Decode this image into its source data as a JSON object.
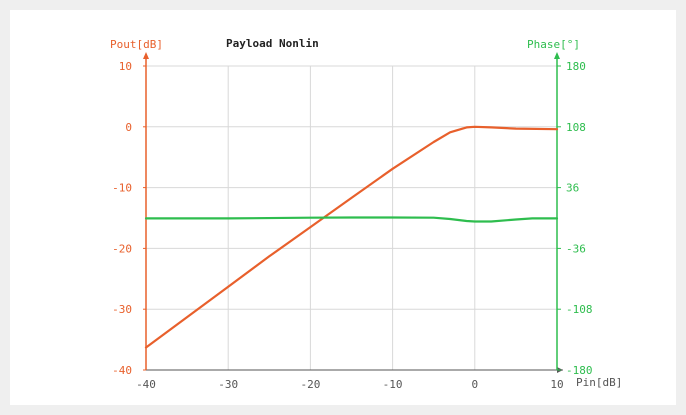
{
  "colors": {
    "left_axis": "#e8602c",
    "right_axis": "#2ebd4e",
    "grid": "#d8d8d8",
    "title": "#222222",
    "x_axis": "#555555",
    "background": "#ffffff"
  },
  "chart_data": {
    "type": "line",
    "title": "Payload Nonlin",
    "xlabel": "Pin[dB]",
    "ylabel_left": "Pout[dB]",
    "ylabel_right": "Phase[°]",
    "xlim": [
      -40,
      10
    ],
    "ylim_left": [
      -40,
      10
    ],
    "ylim_right": [
      -180,
      180
    ],
    "x_ticks": [
      -40,
      -30,
      -20,
      -10,
      0,
      10
    ],
    "y_left_ticks": [
      10,
      0,
      -10,
      -20,
      -30,
      -40
    ],
    "y_right_ticks": [
      180,
      108,
      36,
      -36,
      -108,
      -180
    ],
    "grid": true,
    "series": [
      {
        "name": "Pout",
        "axis": "left",
        "color": "#e8602c",
        "x": [
          -40,
          -35,
          -30,
          -25,
          -20,
          -15,
          -10,
          -5,
          -3,
          -1,
          0,
          2,
          5,
          10
        ],
        "y": [
          -36.3,
          -31.3,
          -26.3,
          -21.3,
          -16.5,
          -11.7,
          -6.9,
          -2.5,
          -0.9,
          -0.1,
          0,
          -0.1,
          -0.3,
          -0.4
        ]
      },
      {
        "name": "Phase",
        "axis": "right",
        "color": "#2ebd4e",
        "x": [
          -40,
          -30,
          -20,
          -15,
          -10,
          -5,
          -3,
          -1,
          0,
          2,
          5,
          7,
          10
        ],
        "y": [
          -0.5,
          -0.5,
          0.3,
          0.6,
          0.6,
          0.3,
          -1.2,
          -3.6,
          -4.1,
          -4.1,
          -1.8,
          -0.5,
          -0.5
        ]
      }
    ]
  }
}
